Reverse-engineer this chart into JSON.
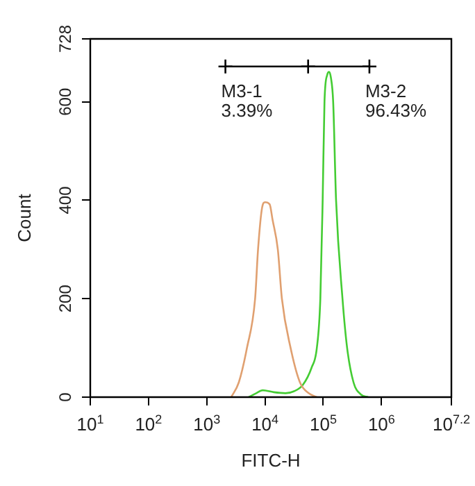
{
  "chart_data": {
    "type": "line",
    "xlabel": "FITC-H",
    "ylabel": "Count",
    "log": "x",
    "grid": false,
    "legend": false,
    "marker": "none",
    "xlim": [
      10,
      15848932
    ],
    "xticks": [
      {
        "value": 10,
        "label": "10$^{1}$"
      },
      {
        "value": 100,
        "label": "10$^{2}$"
      },
      {
        "value": 1000,
        "label": "10$^{3}$"
      },
      {
        "value": 10000,
        "label": "10$^{4}$"
      },
      {
        "value": 100000,
        "label": "10$^{5}$"
      },
      {
        "value": 1000000,
        "label": "10$^{6}$"
      },
      {
        "value": 15848932,
        "label": "10$^{7.2}$"
      }
    ],
    "ylim": [
      0,
      728
    ],
    "yticks": [
      0,
      200,
      400,
      600,
      728
    ],
    "series": [
      {
        "color": "#e0a070",
        "x": [
          2630,
          3550,
          4900,
          6760,
          7590,
          8910,
          10000,
          12000,
          13500,
          16600,
          19500,
          27500,
          39800,
          56200,
          77600
        ],
        "values": [
          0,
          30,
          100,
          200,
          300,
          385,
          396,
          392,
          360,
          300,
          200,
          100,
          30,
          8,
          0
        ]
      },
      {
        "color": "#44cc33",
        "x": [
          5250,
          7080,
          9120,
          14100,
          22400,
          31600,
          44700,
          63100,
          77600,
          89100,
          97700,
          105000,
          117000,
          126000,
          135000,
          148000,
          166000,
          214000,
          257000,
          331000,
          447000,
          589000
        ],
        "values": [
          0,
          8,
          14,
          10,
          8,
          12,
          25,
          60,
          100,
          200,
          400,
          600,
          655,
          661,
          650,
          600,
          400,
          200,
          100,
          30,
          5,
          0
        ]
      },
      {
        "color": "#000000",
        "marker": "cross",
        "x": [
          2090,
          55000,
          620000
        ],
        "values": [
          672,
          672,
          672
        ]
      }
    ],
    "annotations": [
      {
        "text": "M3-1\n3.39%",
        "x": 2090,
        "y": 672
      },
      {
        "text": "M3-2\n96.43%",
        "x": 620000,
        "y": 672
      }
    ]
  }
}
